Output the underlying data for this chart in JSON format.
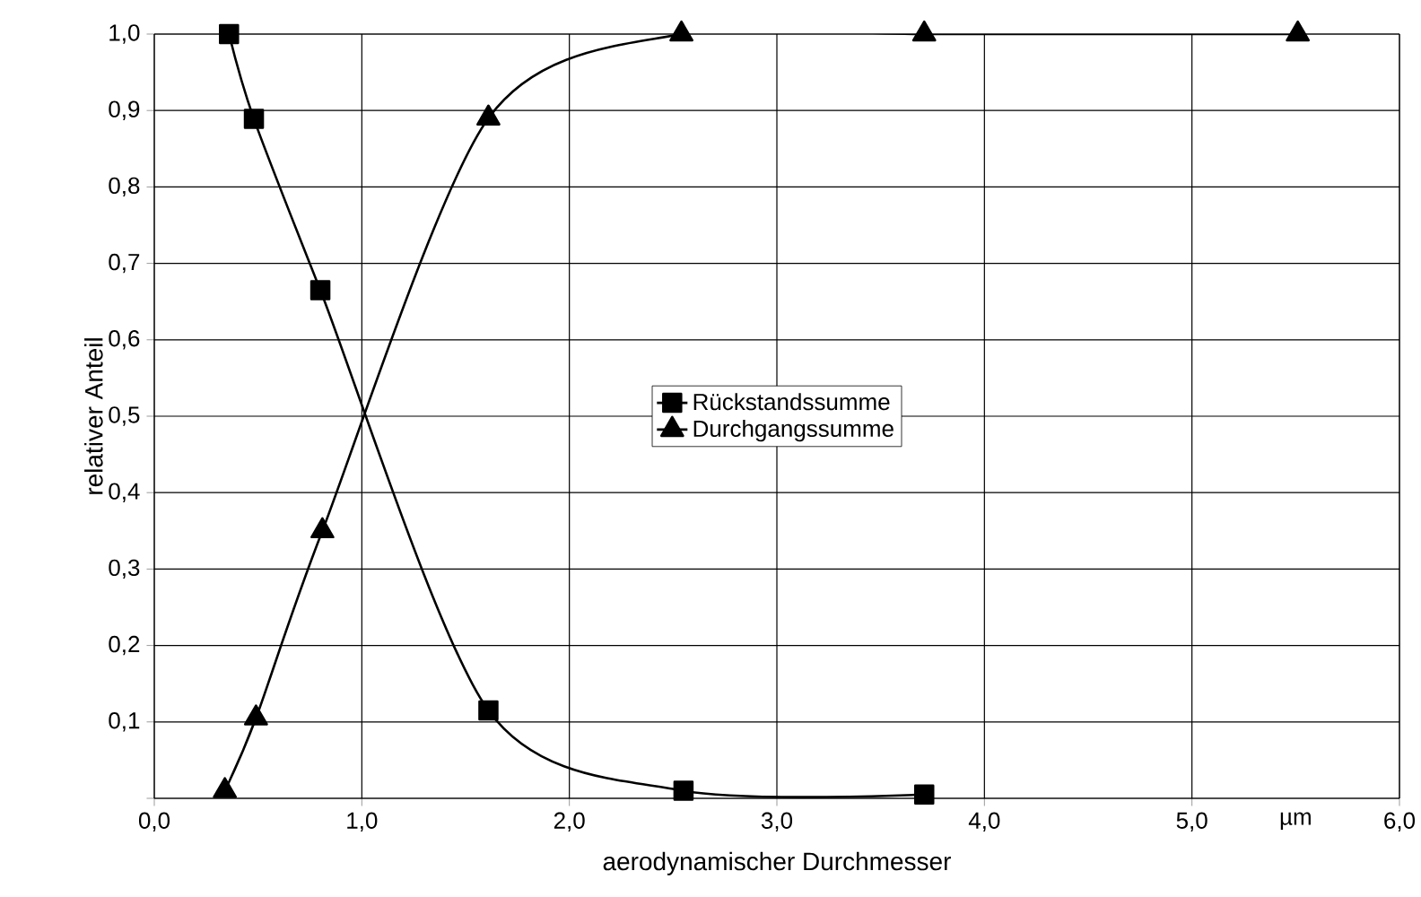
{
  "chart_data": {
    "type": "line",
    "xlabel": "aerodynamischer Durchmesser",
    "ylabel": "relativer Anteil",
    "xlim": [
      0,
      6
    ],
    "ylim": [
      0,
      1
    ],
    "xticks": [
      {
        "value": 0,
        "label": "0,0"
      },
      {
        "value": 1,
        "label": "1,0"
      },
      {
        "value": 2,
        "label": "2,0"
      },
      {
        "value": 3,
        "label": "3,0"
      },
      {
        "value": 4,
        "label": "4,0"
      },
      {
        "value": 5,
        "label": "5,0"
      },
      {
        "value": 5.5,
        "label": "µm"
      },
      {
        "value": 6,
        "label": "6,0"
      }
    ],
    "yticks": [
      {
        "value": 0,
        "label": null
      },
      {
        "value": 0.1,
        "label": "0,1"
      },
      {
        "value": 0.2,
        "label": "0,2"
      },
      {
        "value": 0.3,
        "label": "0,3"
      },
      {
        "value": 0.4,
        "label": "0,4"
      },
      {
        "value": 0.5,
        "label": "0,5"
      },
      {
        "value": 0.6,
        "label": "0,6"
      },
      {
        "value": 0.7,
        "label": "0,7"
      },
      {
        "value": 0.8,
        "label": "0,8"
      },
      {
        "value": 0.9,
        "label": "0,9"
      },
      {
        "value": 1,
        "label": "1,0"
      }
    ],
    "grid": true,
    "legend": "center",
    "series": [
      {
        "name": "Rückstandssumme",
        "color": "#000000",
        "marker": "square",
        "x": [
          0.36,
          0.48,
          0.8,
          1.61,
          2.55,
          3.71
        ],
        "values": [
          1.0,
          0.889,
          0.665,
          0.115,
          0.01,
          0.005
        ]
      },
      {
        "name": "Durchgangssumme",
        "color": "#000000",
        "marker": "triangle",
        "x": [
          0.34,
          0.49,
          0.81,
          1.61,
          2.54,
          3.71,
          5.51
        ],
        "values": [
          0.01,
          0.105,
          0.35,
          0.89,
          1.0,
          1.0,
          1.0
        ]
      }
    ]
  }
}
